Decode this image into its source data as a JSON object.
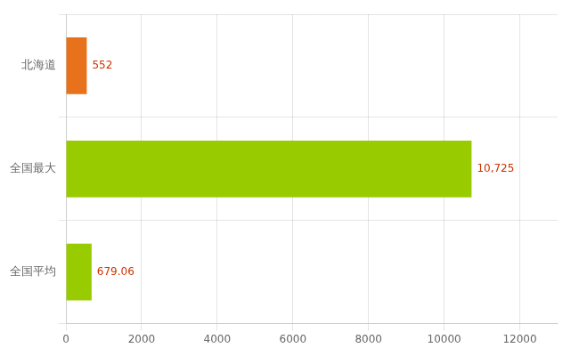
{
  "chart_data": {
    "type": "bar",
    "orientation": "horizontal",
    "categories": [
      "北海道",
      "全国最大",
      "全国平均"
    ],
    "values": [
      552,
      10725,
      679.06
    ],
    "value_labels": [
      "552",
      "10,725",
      "679.06"
    ],
    "colors": [
      "#e8721c",
      "#99cc00",
      "#99cc00"
    ],
    "xlim": [
      0,
      13000
    ],
    "xticks": [
      0,
      2000,
      4000,
      6000,
      8000,
      10000,
      12000
    ],
    "grid": true,
    "data_labels": true
  }
}
